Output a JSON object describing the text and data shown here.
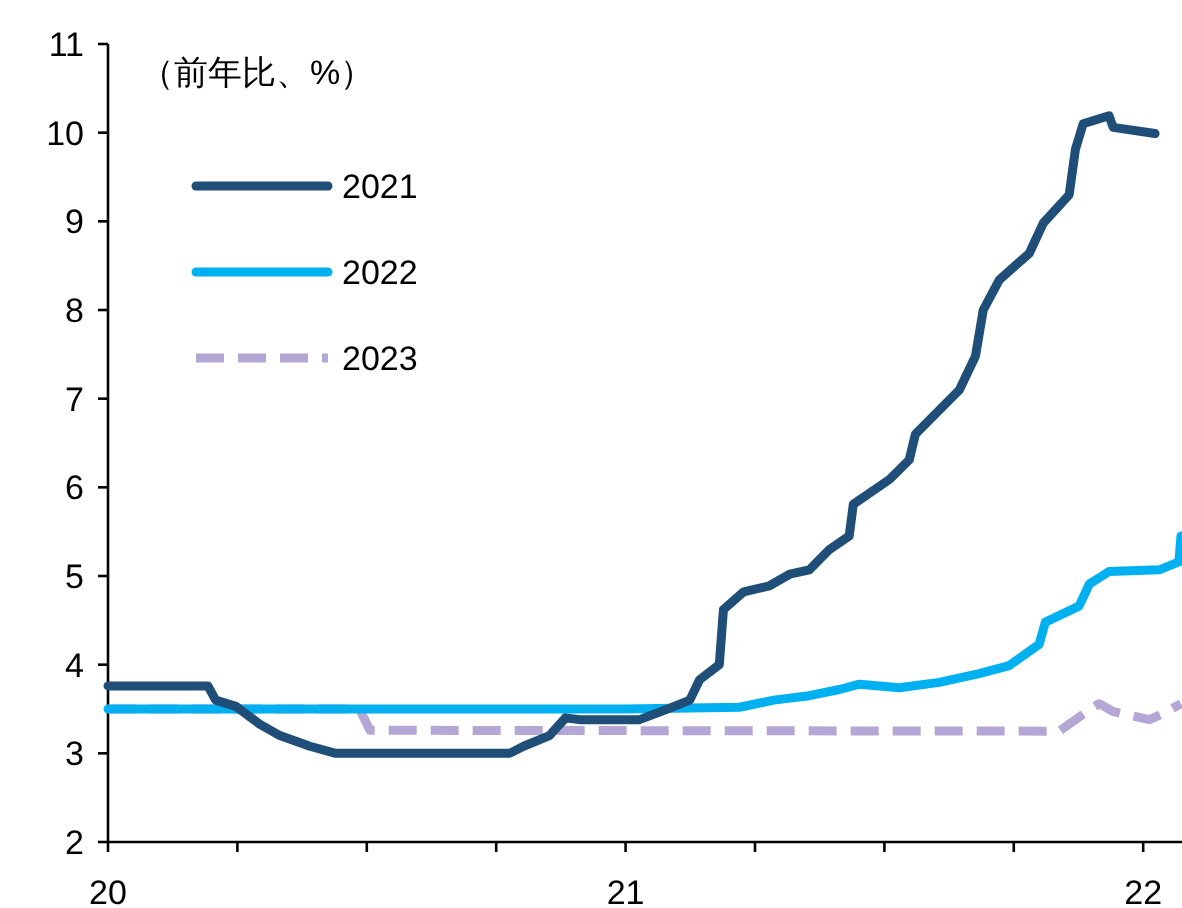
{
  "chart_data": {
    "type": "line",
    "annotations": [
      "（前年比、%）"
    ],
    "xlim": [
      20,
      22.075
    ],
    "ylim": [
      2,
      11
    ],
    "xticks": [
      {
        "value": 20,
        "label": "20"
      },
      {
        "value": 20.25,
        "label": null
      },
      {
        "value": 20.5,
        "label": null
      },
      {
        "value": 20.75,
        "label": null
      },
      {
        "value": 21,
        "label": "21"
      },
      {
        "value": 21.25,
        "label": null
      },
      {
        "value": 21.5,
        "label": null
      },
      {
        "value": 21.75,
        "label": null
      },
      {
        "value": 22,
        "label": "22"
      }
    ],
    "yticks": [
      2,
      3,
      4,
      5,
      6,
      7,
      8,
      9,
      10,
      11
    ],
    "grid": false,
    "legend": "top left",
    "marker": "none",
    "series": [
      {
        "name": "2021",
        "color": "#1f4e79",
        "line_style": "solid",
        "x": [
          20.0,
          20.193,
          20.208,
          20.247,
          20.293,
          20.332,
          20.39,
          20.44,
          20.776,
          20.803,
          20.853,
          20.884,
          20.911,
          21.027,
          21.077,
          21.124,
          21.143,
          21.181,
          21.189,
          21.228,
          21.278,
          21.317,
          21.355,
          21.394,
          21.432,
          21.44,
          21.51,
          21.548,
          21.56,
          21.606,
          21.645,
          21.676,
          21.691,
          21.722,
          21.78,
          21.807,
          21.857,
          21.869,
          21.884,
          21.934,
          21.942,
          22.023
        ],
        "values": [
          3.76,
          3.76,
          3.6,
          3.53,
          3.33,
          3.2,
          3.08,
          3.0,
          3.0,
          3.08,
          3.2,
          3.4,
          3.38,
          3.38,
          3.49,
          3.6,
          3.83,
          4.0,
          4.62,
          4.82,
          4.89,
          5.02,
          5.07,
          5.3,
          5.45,
          5.81,
          6.09,
          6.31,
          6.6,
          6.87,
          7.1,
          7.48,
          8.0,
          8.34,
          8.64,
          8.98,
          9.3,
          9.81,
          10.1,
          10.19,
          10.06,
          9.99
        ]
      },
      {
        "name": "2022",
        "color": "#00b0f0",
        "line_style": "solid",
        "x": [
          20.0,
          21.0,
          21.22,
          21.286,
          21.355,
          21.413,
          21.452,
          21.529,
          21.606,
          21.683,
          21.741,
          21.799,
          21.811,
          21.876,
          21.896,
          21.934,
          22.031,
          22.069,
          22.073
        ],
        "values": [
          3.5,
          3.5,
          3.52,
          3.6,
          3.65,
          3.72,
          3.78,
          3.74,
          3.8,
          3.9,
          3.99,
          4.23,
          4.48,
          4.66,
          4.91,
          5.05,
          5.07,
          5.16,
          5.45
        ]
      },
      {
        "name": "2023",
        "color": "#b4a7d6",
        "line_style": "dashed",
        "x": [
          20.0,
          20.486,
          20.506,
          21.838,
          21.857,
          21.896,
          21.915,
          21.942,
          22.012,
          22.039,
          22.073
        ],
        "values": [
          3.5,
          3.5,
          3.26,
          3.25,
          3.33,
          3.49,
          3.56,
          3.47,
          3.38,
          3.45,
          3.56
        ]
      }
    ]
  }
}
